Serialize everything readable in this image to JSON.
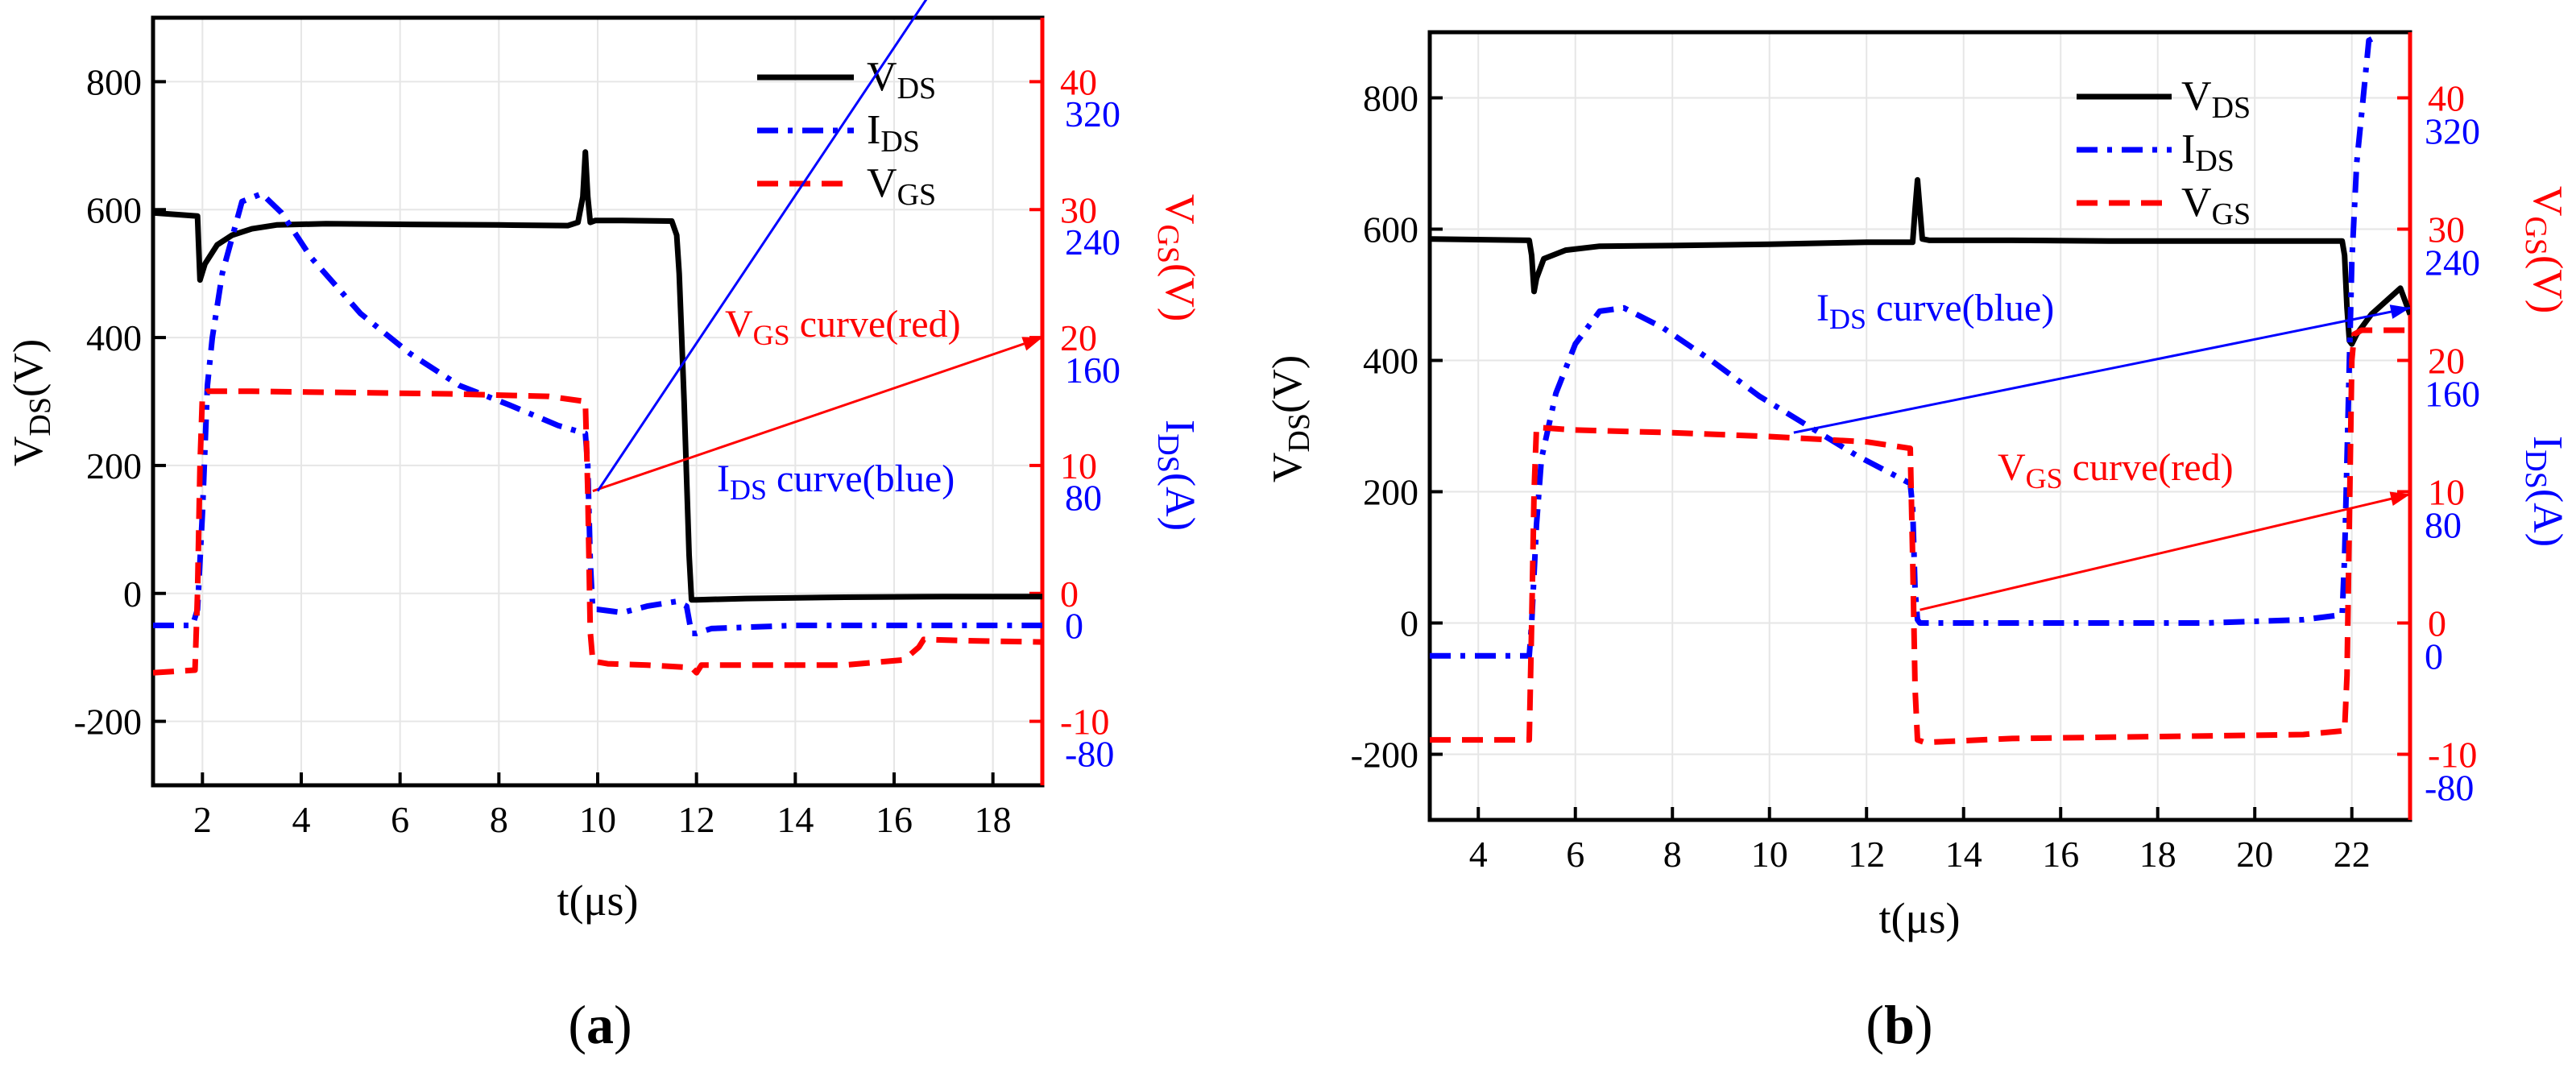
{
  "figure": {
    "panels": [
      {
        "label_bold": "a",
        "label": "(a)"
      },
      {
        "label_bold": "b",
        "label": "(b)"
      }
    ]
  },
  "colors": {
    "vds": "#000000",
    "ids": "#0000ff",
    "vgs": "#ff0000",
    "axis": "#000000"
  },
  "chart_data": [
    {
      "type": "line",
      "panel": "a",
      "xlabel": "t(μs)",
      "xlim": [
        1,
        19
      ],
      "xticks": [
        2,
        4,
        6,
        8,
        10,
        12,
        14,
        16,
        18
      ],
      "axes": {
        "vds": {
          "label_main": "V",
          "label_sub": "DS",
          "label_tail": "(V)",
          "lim": [
            -300,
            900
          ],
          "ticks": [
            -200,
            0,
            200,
            400,
            600,
            800
          ]
        },
        "vgs": {
          "label_main": "V",
          "label_sub": "GS",
          "label_tail": "(V)",
          "lim": [
            -15,
            45
          ],
          "ticks": [
            -10,
            0,
            10,
            20,
            30,
            40
          ]
        },
        "ids": {
          "label_main": "I",
          "label_sub": "DS",
          "label_tail": "(A)",
          "lim": [
            -100,
            380
          ],
          "ticks": [
            -80,
            0,
            80,
            160,
            240,
            320
          ],
          "tick_labels": [
            "-80",
            "0",
            "80",
            "160",
            "240",
            "320"
          ]
        }
      },
      "legend": {
        "position": "top-right",
        "entries": [
          {
            "series": "vds",
            "main": "V",
            "sub": "DS"
          },
          {
            "series": "ids",
            "main": "I",
            "sub": "DS"
          },
          {
            "series": "vgs",
            "main": "V",
            "sub": "GS"
          }
        ]
      },
      "series": [
        {
          "key": "vds",
          "name": "VDS",
          "axis": "vds",
          "style": "solid",
          "x": [
            1.0,
            1.9,
            1.92,
            1.95,
            2.05,
            2.3,
            2.6,
            3.0,
            3.5,
            4.5,
            6,
            8,
            9.4,
            9.6,
            9.7,
            9.75,
            9.8,
            9.85,
            9.95,
            10.5,
            11.5,
            11.6,
            11.65,
            11.7,
            11.75,
            11.8,
            11.85,
            11.9,
            12.0,
            13,
            15,
            17,
            19.0
          ],
          "y": [
            595,
            590,
            550,
            490,
            515,
            545,
            560,
            570,
            576,
            578,
            577,
            576,
            575,
            580,
            620,
            690,
            620,
            580,
            583,
            583,
            582,
            560,
            500,
            400,
            300,
            180,
            60,
            -10,
            -10,
            -8,
            -6,
            -5,
            -5
          ]
        },
        {
          "key": "ids",
          "name": "IDS",
          "axis": "ids",
          "style": "dashdot",
          "x": [
            1.0,
            1.8,
            1.9,
            2.0,
            2.1,
            2.2,
            2.4,
            2.8,
            3.2,
            3.6,
            4.2,
            5.2,
            6.2,
            7.2,
            8.2,
            9.2,
            9.75,
            9.8,
            9.85,
            9.9,
            10.0,
            10.5,
            11.0,
            11.6,
            11.8,
            11.9,
            12.0,
            12.3,
            14,
            16,
            19.0
          ],
          "y": [
            0,
            0,
            10,
            70,
            150,
            180,
            220,
            265,
            270,
            258,
            230,
            195,
            170,
            150,
            138,
            125,
            120,
            100,
            40,
            10,
            10,
            8,
            12,
            15,
            12,
            -5,
            -5,
            -2,
            0,
            0,
            0
          ]
        },
        {
          "key": "vgs",
          "name": "VGS",
          "axis": "vgs",
          "style": "dashed",
          "x": [
            1.0,
            1.85,
            1.9,
            1.95,
            2.0,
            2.1,
            3,
            5,
            7,
            9,
            9.75,
            9.8,
            9.85,
            9.9,
            10.2,
            11,
            11.9,
            12.0,
            12.1,
            13,
            15,
            16.2,
            16.5,
            16.6,
            17.5,
            19.0
          ],
          "y": [
            -6.2,
            -6.0,
            0,
            10,
            15.5,
            15.8,
            15.8,
            15.7,
            15.6,
            15.4,
            15,
            8,
            -3,
            -5.3,
            -5.5,
            -5.6,
            -5.8,
            -6.2,
            -5.6,
            -5.6,
            -5.6,
            -5.2,
            -4.2,
            -3.6,
            -3.7,
            -3.8
          ]
        }
      ],
      "annotations": [
        {
          "series": "vgs",
          "main": "V",
          "sub": "GS",
          "text": " curve(red)",
          "from": [
            9.9,
            8.0
          ],
          "to": [
            19.0,
            20.0
          ]
        },
        {
          "series": "ids",
          "main": "I",
          "sub": "DS",
          "text": " curve(blue)",
          "from": [
            10.0,
            8.0
          ],
          "to": [
            19.0,
            60.0
          ]
        }
      ]
    },
    {
      "type": "line",
      "panel": "b",
      "xlabel": "t(μs)",
      "xlim": [
        3,
        23.2
      ],
      "xticks": [
        4,
        6,
        8,
        10,
        12,
        14,
        16,
        18,
        20,
        22
      ],
      "axes": {
        "vds": {
          "label_main": "V",
          "label_sub": "DS",
          "label_tail": "(V)",
          "lim": [
            -300,
            900
          ],
          "ticks": [
            -200,
            0,
            200,
            400,
            600,
            800
          ]
        },
        "vgs": {
          "label_main": "V",
          "label_sub": "GS",
          "label_tail": "(V)",
          "lim": [
            -15,
            45
          ],
          "ticks": [
            -10,
            0,
            10,
            20,
            30,
            40
          ]
        },
        "ids": {
          "label_main": "I",
          "label_sub": "DS",
          "label_tail": "(A)",
          "lim": [
            -100,
            380
          ],
          "ticks": [
            -80,
            0,
            80,
            160,
            240,
            320
          ],
          "tick_labels": [
            "-80",
            "0",
            "80",
            "160",
            "240",
            "320"
          ]
        }
      },
      "legend": {
        "position": "top-right",
        "entries": [
          {
            "series": "vds",
            "main": "V",
            "sub": "DS"
          },
          {
            "series": "ids",
            "main": "I",
            "sub": "DS"
          },
          {
            "series": "vgs",
            "main": "V",
            "sub": "GS"
          }
        ]
      },
      "series": [
        {
          "key": "vds",
          "name": "VDS",
          "axis": "vds",
          "style": "solid",
          "x": [
            3.0,
            5.05,
            5.1,
            5.15,
            5.2,
            5.35,
            5.8,
            6.5,
            8,
            10,
            12,
            12.95,
            13.0,
            13.05,
            13.1,
            13.15,
            13.3,
            15,
            17,
            19,
            21,
            21.8,
            21.85,
            21.9,
            21.95,
            22.0,
            22.1,
            22.4,
            22.7,
            23.0,
            23.2
          ],
          "y": [
            585,
            583,
            560,
            505,
            525,
            555,
            568,
            574,
            575,
            577,
            580,
            580,
            630,
            675,
            630,
            585,
            583,
            583,
            582,
            582,
            582,
            582,
            560,
            480,
            430,
            425,
            440,
            470,
            490,
            510,
            470
          ]
        },
        {
          "key": "ids",
          "name": "IDS",
          "axis": "ids",
          "style": "dashdot",
          "x": [
            3.0,
            5.05,
            5.1,
            5.2,
            5.3,
            5.6,
            6.0,
            6.5,
            7.0,
            7.8,
            8.8,
            9.8,
            10.8,
            11.8,
            12.9,
            12.95,
            13.0,
            13.05,
            13.1,
            13.3,
            15,
            17,
            19,
            21,
            21.8,
            21.85,
            21.9,
            21.95,
            22.0,
            22.05,
            22.1,
            22.2,
            22.35,
            22.55
          ],
          "y": [
            0,
            0,
            20,
            80,
            120,
            160,
            190,
            210,
            212,
            200,
            180,
            158,
            140,
            122,
            105,
            90,
            40,
            22,
            20,
            20,
            20,
            20,
            20,
            22,
            25,
            60,
            120,
            180,
            240,
            270,
            300,
            330,
            375,
            378
          ]
        },
        {
          "key": "vgs",
          "name": "VGS",
          "axis": "vgs",
          "style": "dashed",
          "x": [
            3.0,
            5.05,
            5.1,
            5.15,
            5.2,
            6,
            8,
            10,
            12,
            12.9,
            12.95,
            13.0,
            13.05,
            13.2,
            15,
            17,
            19,
            21,
            21.85,
            21.9,
            21.95,
            22.0,
            22.05,
            22.2,
            23.2
          ],
          "y": [
            -8.9,
            -8.9,
            0,
            10,
            14.9,
            14.7,
            14.5,
            14.2,
            13.8,
            13.3,
            5,
            -5,
            -8.9,
            -9.1,
            -8.8,
            -8.7,
            -8.6,
            -8.5,
            -8.2,
            -4,
            8,
            20,
            22,
            22.3,
            22.3
          ]
        }
      ],
      "annotations": [
        {
          "series": "ids",
          "main": "I",
          "sub": "DS",
          "text": " curve(blue)",
          "from": [
            10.5,
            14.5
          ],
          "to": [
            23.2,
            24.0
          ]
        },
        {
          "series": "vgs",
          "main": "V",
          "sub": "GS",
          "text": " curve(red)",
          "from": [
            13.1,
            1.0
          ],
          "to": [
            23.2,
            9.8
          ]
        }
      ]
    }
  ]
}
